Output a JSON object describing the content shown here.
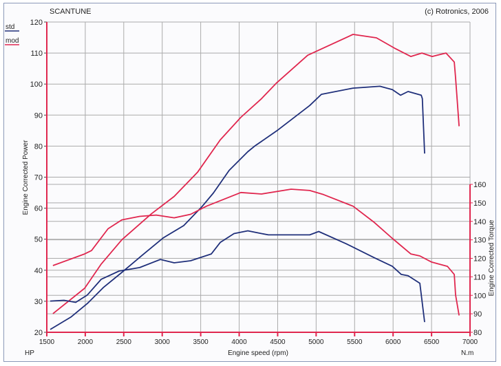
{
  "header": {
    "brand": "SCANTUNE",
    "copyright": "(c) Rotronics, 2006"
  },
  "legend": [
    {
      "label": "std",
      "color": "#1f2f7a"
    },
    {
      "label": "mod",
      "color": "#e0264e"
    }
  ],
  "chart_data": {
    "type": "line",
    "title": "SCANTUNE",
    "xlabel": "Engine speed (rpm)",
    "ylabel": "Engine Corrected Power",
    "y2label": "Engine Corrected Torque",
    "y_unit": "HP",
    "y2_unit": "N.m",
    "xlim": [
      1500,
      7000
    ],
    "ylim": [
      20,
      120
    ],
    "y2lim": [
      80,
      160
    ],
    "xticks": [
      1500,
      2000,
      2500,
      3000,
      3500,
      4000,
      4500,
      5000,
      5500,
      6000,
      6500,
      7000
    ],
    "yticks": [
      20,
      30,
      40,
      50,
      60,
      70,
      80,
      90,
      100,
      110,
      120
    ],
    "y2ticks": [
      80,
      90,
      100,
      110,
      120,
      130,
      140,
      150,
      160
    ],
    "grid": true,
    "legend_position": "top-left",
    "series": [
      {
        "name": "mod power",
        "legend": "mod",
        "axis": "left",
        "color": "#e0264e",
        "x": [
          1580,
          1992,
          2207,
          2475,
          2860,
          3155,
          3459,
          3754,
          4022,
          4290,
          4487,
          4890,
          5480,
          5784,
          6017,
          6230,
          6375,
          6508,
          6688,
          6795,
          6812,
          6858
        ],
        "y": [
          26,
          34.2,
          42,
          49.8,
          58.2,
          63.8,
          71.6,
          82,
          89.3,
          95.3,
          100.4,
          109.3,
          116,
          114.9,
          111.6,
          108.9,
          110,
          108.9,
          110,
          107.1,
          102,
          86.4
        ]
      },
      {
        "name": "std power",
        "legend": "std",
        "axis": "left",
        "color": "#1f2f7a",
        "x": [
          1545,
          1813,
          2028,
          2233,
          2475,
          2743,
          3011,
          3280,
          3513,
          3665,
          3870,
          4112,
          4201,
          4487,
          4917,
          5068,
          5480,
          5829,
          5990,
          6097,
          6195,
          6366,
          6380,
          6410
        ],
        "y": [
          20.9,
          24.9,
          29.3,
          34.4,
          39.3,
          44.9,
          50.4,
          54.4,
          60.4,
          64.9,
          72.2,
          78.2,
          80,
          84.9,
          93.1,
          96.7,
          98.7,
          99.3,
          98.2,
          96.4,
          97.6,
          96.4,
          95.3,
          77.6
        ]
      },
      {
        "name": "mod torque",
        "legend": "mod",
        "axis": "right",
        "color": "#e0264e",
        "x": [
          1580,
          1992,
          2081,
          2296,
          2475,
          2707,
          2922,
          3155,
          3369,
          3575,
          4022,
          4290,
          4675,
          4917,
          5095,
          5480,
          5748,
          5990,
          6230,
          6348,
          6500,
          6706,
          6795,
          6812,
          6858
        ],
        "y": [
          116.1,
          122.4,
          124.2,
          136,
          140.8,
          142.7,
          143.4,
          141.9,
          143.8,
          148.2,
          155.6,
          154.8,
          157.4,
          156.7,
          154.5,
          148.2,
          139.7,
          130.8,
          122.4,
          121.3,
          118,
          115.7,
          111.3,
          100.2,
          89.1
        ]
      },
      {
        "name": "std torque",
        "legend": "std",
        "axis": "right",
        "color": "#1f2f7a",
        "x": [
          1545,
          1724,
          1876,
          2028,
          2207,
          2439,
          2707,
          2976,
          3155,
          3369,
          3638,
          3754,
          3933,
          4112,
          4290,
          4380,
          4917,
          5033,
          5390,
          5748,
          5990,
          6107,
          6195,
          6348,
          6410
        ],
        "y": [
          96.9,
          97.3,
          96.2,
          100.2,
          108.7,
          113.1,
          115,
          119.4,
          117.6,
          118.7,
          122.4,
          128.6,
          133.4,
          134.9,
          133.4,
          132.7,
          132.7,
          134.5,
          127.9,
          120.5,
          115.7,
          111.3,
          110.6,
          106.5,
          85.5
        ]
      }
    ]
  }
}
